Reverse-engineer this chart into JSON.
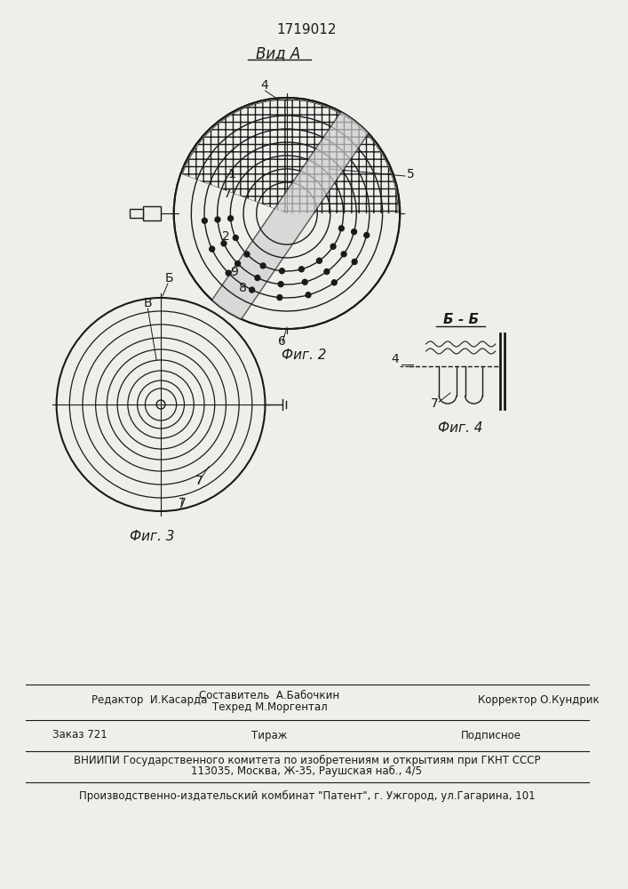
{
  "title": "1719012",
  "vid_a_label": "Вид А",
  "fig2_label": "Фиг. 2",
  "fig3_label": "Фиг. 3",
  "fig4_label": "Фиг. 4",
  "bb_label": "Б - Б",
  "bg_color": "#f0eeea",
  "line_color": "#1a1a1a",
  "footer_line1_left": "Редактор  И.Касарда",
  "footer_line1_mid": "Составитель  А.Бабочкин\nТехред М.Моргентал",
  "footer_line1_right": "Корректор О.Кундрик",
  "footer_line2_left": "Заказ 721",
  "footer_line2_mid": "Тираж",
  "footer_line2_right": "Подписное",
  "footer_line3": "ВНИИПИ Государственного комитета по изобретениям и открытиям при ГКНТ СССР",
  "footer_line4": "113035, Москва, Ж-35, Раушская наб., 4/5",
  "footer_line5": "Производственно-издательский комбинат \"Патент\", г. Ужгород, ул.Гагарина, 101"
}
